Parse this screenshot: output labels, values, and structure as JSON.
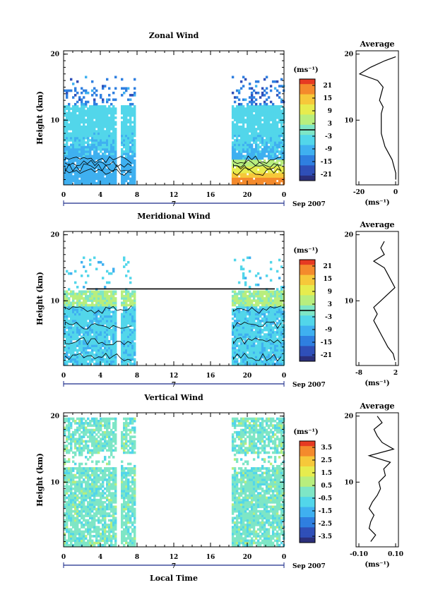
{
  "colors": {
    "colormap": [
      "#2b2f7a",
      "#2f4fb8",
      "#2f7fe0",
      "#3fb0f0",
      "#52d6ea",
      "#7ee6c6",
      "#b8ee7e",
      "#e6ec4e",
      "#f6c83a",
      "#f48a2c",
      "#e63a22"
    ],
    "line": "#000000",
    "missing": "#ffffff"
  },
  "common": {
    "ylabel": "Height (km)",
    "xlabel": "Local Time",
    "date_label": "Sep 2007",
    "day_label": "7",
    "x_ticks": [
      "0",
      "4",
      "8",
      "12",
      "16",
      "20",
      "0"
    ],
    "y_ticks": [
      "10",
      "20"
    ],
    "data_ranges": [
      [
        0,
        7.8
      ],
      [
        18.3,
        24
      ]
    ]
  },
  "panels": [
    {
      "id": "zonal",
      "title": "Zonal Wind",
      "unit_label": "(ms⁻¹)",
      "colorbar_ticks": [
        "21",
        "15",
        "9",
        "3",
        "-3",
        "-9",
        "-15",
        "-21"
      ],
      "colorbar_range": [
        -24,
        24
      ],
      "colorbar_zero": 0,
      "avg_title": "Average",
      "avg_unit": "(ms⁻¹)",
      "avg_xticks": [
        "-20",
        "0"
      ],
      "avg_y_ticks": [
        "10",
        "20"
      ],
      "avg_xlim": [
        -22,
        1.5
      ],
      "avg_profile": {
        "height_km": [
          1,
          2,
          3,
          4,
          5,
          6,
          7,
          8,
          9,
          10,
          11,
          12,
          13,
          14,
          15,
          16,
          17,
          18,
          19,
          19.6
        ],
        "value": [
          0,
          0,
          -1,
          -2,
          -4,
          -6,
          -7,
          -8,
          -8,
          -8,
          -8,
          -7,
          -9,
          -8,
          -7,
          -10,
          -20,
          -14,
          -6,
          0
        ]
      }
    },
    {
      "id": "meridional",
      "title": "Meridional Wind",
      "unit_label": "(ms⁻¹)",
      "colorbar_ticks": [
        "21",
        "15",
        "9",
        "3",
        "-3",
        "-9",
        "-15",
        "-21"
      ],
      "colorbar_range": [
        -24,
        24
      ],
      "colorbar_zero": 0,
      "avg_title": "Average",
      "avg_unit": "(ms⁻¹)",
      "avg_xticks": [
        "-8",
        "2"
      ],
      "avg_y_ticks": [
        "10",
        "20"
      ],
      "avg_xlim": [
        -9,
        3
      ],
      "avg_profile": {
        "height_km": [
          1,
          2,
          3,
          4,
          5,
          6,
          7,
          8,
          9,
          10,
          11,
          12,
          13,
          14,
          15,
          16,
          17,
          18,
          19
        ],
        "value": [
          2,
          1.5,
          0,
          -1,
          -2,
          -3,
          -4,
          -3,
          -4,
          -2,
          0,
          2,
          1,
          0,
          -1,
          -4,
          -1,
          -2,
          -1
        ]
      }
    },
    {
      "id": "vertical",
      "title": "Vertical Wind",
      "unit_label": "(ms⁻¹)",
      "colorbar_ticks": [
        "3.5",
        "2.5",
        "1.5",
        "0.5",
        "-0.5",
        "-1.5",
        "-2.5",
        "-3.5"
      ],
      "colorbar_range": [
        -4,
        4
      ],
      "colorbar_zero": null,
      "avg_title": "Average",
      "avg_unit": "(ms⁻¹)",
      "avg_xticks": [
        "-0.10",
        "0.10"
      ],
      "avg_y_ticks": [
        "10",
        "20"
      ],
      "avg_xlim": [
        -0.13,
        0.13
      ],
      "avg_profile": {
        "height_km": [
          1,
          2,
          3,
          4,
          5,
          6,
          7,
          8,
          9,
          10,
          11,
          12,
          13,
          14,
          15,
          16,
          17,
          18,
          19,
          20
        ],
        "value": [
          -0.04,
          -0.01,
          -0.05,
          -0.04,
          -0.02,
          -0.05,
          -0.03,
          0,
          0.02,
          0.01,
          0.05,
          0.04,
          0.08,
          -0.05,
          0.1,
          0.03,
          0,
          -0.02,
          0.03,
          0
        ]
      }
    }
  ]
}
